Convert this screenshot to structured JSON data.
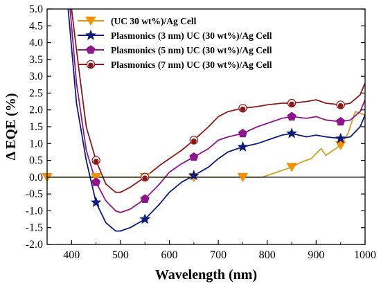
{
  "chart_data": {
    "type": "line",
    "xlabel": "Wavelength (nm)",
    "ylabel": "Δ EQE (%)",
    "xlim": [
      350,
      1000
    ],
    "ylim": [
      -2.0,
      5.0
    ],
    "x_ticks": [
      400,
      500,
      600,
      700,
      800,
      900,
      1000
    ],
    "x_tick_labels": [
      "400",
      "500",
      "600",
      "700",
      "800",
      "900",
      "1000"
    ],
    "y_ticks": [
      -2.0,
      -1.5,
      -1.0,
      -0.5,
      0.0,
      0.5,
      1.0,
      1.5,
      2.0,
      2.5,
      3.0,
      3.5,
      4.0,
      4.5,
      5.0
    ],
    "y_tick_labels": [
      "-2.0",
      "-1.5",
      "-1.0",
      "-0.5",
      "0.0",
      "0.5",
      "1.0",
      "1.5",
      "2.0",
      "2.5",
      "3.0",
      "3.5",
      "4.0",
      "4.5",
      "5.0"
    ],
    "reference_line_y": 0,
    "grid": false,
    "legend_position": "top-left",
    "series": [
      {
        "name": "(UC 30 wt%)/Ag Cell",
        "color": "#F39200",
        "line_color": "#C9A227",
        "marker": "triangle-down",
        "x": [
          350,
          400,
          450,
          500,
          550,
          600,
          650,
          700,
          750,
          790,
          800,
          820,
          850,
          870,
          890,
          910,
          920,
          935,
          950,
          965,
          980,
          990,
          1000
        ],
        "y": [
          0,
          0,
          0,
          0,
          0,
          0,
          0,
          0,
          0,
          0,
          0.05,
          0.15,
          0.3,
          0.45,
          0.55,
          0.85,
          0.65,
          0.8,
          0.95,
          1.3,
          1.95,
          1.9,
          1.85
        ],
        "marker_x": [
          350,
          450,
          550,
          650,
          750,
          850,
          950
        ],
        "marker_y": [
          0,
          0,
          0,
          0,
          0,
          0.3,
          0.95
        ]
      },
      {
        "name": "Plasmonics (3 nm) UC (30 wt%)/Ag Cell",
        "color": "#0D1B7A",
        "marker": "star",
        "x": [
          393,
          410,
          430,
          450,
          470,
          490,
          500,
          520,
          550,
          580,
          600,
          625,
          650,
          680,
          700,
          720,
          750,
          780,
          800,
          830,
          850,
          880,
          900,
          920,
          950,
          970,
          990,
          1000
        ],
        "y": [
          5.0,
          2.2,
          0.5,
          -0.75,
          -1.35,
          -1.6,
          -1.6,
          -1.5,
          -1.25,
          -0.8,
          -0.45,
          -0.15,
          0.05,
          0.3,
          0.55,
          0.75,
          0.9,
          1.0,
          1.1,
          1.25,
          1.3,
          1.2,
          1.25,
          1.2,
          1.15,
          1.2,
          1.5,
          1.85
        ],
        "marker_x": [
          450,
          550,
          650,
          750,
          850,
          950
        ],
        "marker_y": [
          -0.75,
          -1.25,
          0.05,
          0.9,
          1.3,
          1.15
        ]
      },
      {
        "name": "Plasmonics (5 nm) UC (30 wt%)/Ag Cell",
        "color": "#8E168C",
        "marker": "pentagon",
        "x": [
          397,
          410,
          430,
          450,
          470,
          490,
          500,
          520,
          550,
          580,
          600,
          625,
          650,
          680,
          700,
          720,
          750,
          780,
          800,
          830,
          850,
          880,
          900,
          920,
          950,
          970,
          990,
          1000
        ],
        "y": [
          5.0,
          2.8,
          0.8,
          -0.15,
          -0.7,
          -1.0,
          -1.05,
          -0.95,
          -0.65,
          -0.2,
          0.15,
          0.4,
          0.6,
          0.85,
          1.1,
          1.2,
          1.3,
          1.5,
          1.6,
          1.75,
          1.8,
          1.75,
          1.8,
          1.7,
          1.65,
          1.7,
          1.95,
          2.3
        ],
        "marker_x": [
          450,
          550,
          650,
          750,
          850,
          950
        ],
        "marker_y": [
          -0.15,
          -0.65,
          0.6,
          1.3,
          1.8,
          1.65
        ]
      },
      {
        "name": "Plasmonics (7 nm) UC (30 wt%)/Ag Cell",
        "color": "#8B1A1A",
        "marker": "circle",
        "x": [
          400,
          415,
          430,
          450,
          470,
          490,
          500,
          520,
          550,
          580,
          600,
          625,
          650,
          680,
          700,
          720,
          750,
          780,
          800,
          830,
          850,
          880,
          900,
          920,
          950,
          970,
          990,
          1000
        ],
        "y": [
          5.0,
          3.2,
          1.5,
          0.5,
          -0.2,
          -0.45,
          -0.45,
          -0.3,
          0.0,
          0.35,
          0.55,
          0.8,
          1.1,
          1.5,
          1.8,
          1.95,
          2.05,
          2.1,
          2.15,
          2.2,
          2.2,
          2.25,
          2.3,
          2.2,
          2.15,
          2.2,
          2.45,
          2.8
        ],
        "marker_x": [
          450,
          550,
          650,
          750,
          850,
          950
        ],
        "marker_y": [
          0.5,
          0.0,
          1.1,
          2.05,
          2.2,
          2.15
        ]
      }
    ]
  }
}
